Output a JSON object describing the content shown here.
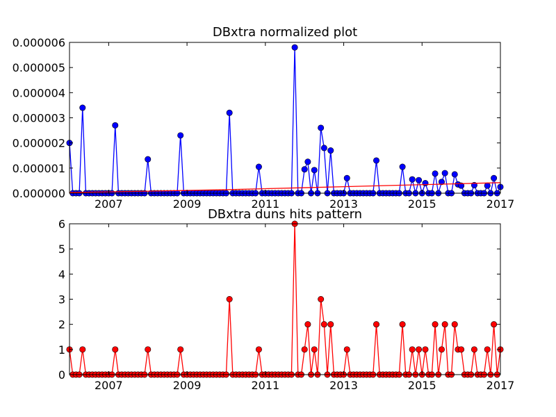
{
  "chart_data": [
    {
      "type": "line",
      "title": "DBxtra normalized plot",
      "xlabel": "",
      "ylabel": "",
      "xlim": [
        2006.0,
        2017.0
      ],
      "ylim": [
        0,
        6e-06
      ],
      "x_ticks": [
        "2007",
        "2009",
        "2011",
        "2013",
        "2015",
        "2017"
      ],
      "y_ticks": [
        "0.000000",
        "0.000001",
        "0.000002",
        "0.000003",
        "0.000004",
        "0.000005",
        "0.000006"
      ],
      "grid": false,
      "legend": "none",
      "series": [
        {
          "color": "#0000ff",
          "marker": "circle",
          "points": [
            [
              2006.0,
              2e-06
            ],
            [
              2006.33,
              3.4e-06
            ],
            [
              2007.17,
              2.7e-06
            ],
            [
              2008.0,
              1.35e-06
            ],
            [
              2008.83,
              2.3e-06
            ],
            [
              2010.08,
              3.2e-06
            ],
            [
              2010.83,
              1.05e-06
            ],
            [
              2011.75,
              5.8e-06
            ],
            [
              2012.0,
              9.5e-07
            ],
            [
              2012.08,
              1.25e-06
            ],
            [
              2012.25,
              9.2e-07
            ],
            [
              2012.42,
              2.6e-06
            ],
            [
              2012.5,
              1.8e-06
            ],
            [
              2012.67,
              1.7e-06
            ],
            [
              2013.08,
              6e-07
            ],
            [
              2013.83,
              1.3e-06
            ],
            [
              2014.5,
              1.05e-06
            ],
            [
              2014.75,
              5.5e-07
            ],
            [
              2014.92,
              5.2e-07
            ],
            [
              2015.08,
              4e-07
            ],
            [
              2015.33,
              7.8e-07
            ],
            [
              2015.5,
              4.5e-07
            ],
            [
              2015.58,
              8e-07
            ],
            [
              2015.83,
              7.5e-07
            ],
            [
              2015.92,
              3.5e-07
            ],
            [
              2016.0,
              3e-07
            ],
            [
              2016.33,
              3.2e-07
            ],
            [
              2016.67,
              3e-07
            ],
            [
              2016.83,
              6e-07
            ],
            [
              2017.0,
              2.5e-07
            ]
          ]
        },
        {
          "color": "#ff0000",
          "marker": "none",
          "points": [
            [
              2006.0,
              3e-08
            ],
            [
              2008.0,
              8e-08
            ],
            [
              2010.0,
              1.4e-07
            ],
            [
              2012.0,
              2.2e-07
            ],
            [
              2014.0,
              3e-07
            ],
            [
              2017.0,
              4.2e-07
            ]
          ]
        }
      ]
    },
    {
      "type": "line",
      "title": "DBxtra duns hits pattern",
      "xlabel": "",
      "ylabel": "",
      "xlim": [
        2006.0,
        2017.0
      ],
      "ylim": [
        0,
        6
      ],
      "x_ticks": [
        "2007",
        "2009",
        "2011",
        "2013",
        "2015",
        "2017"
      ],
      "y_ticks": [
        "0",
        "1",
        "2",
        "3",
        "4",
        "5",
        "6"
      ],
      "grid": false,
      "legend": "none",
      "series": [
        {
          "color": "#ff0000",
          "marker": "circle",
          "points": [
            [
              2006.0,
              1
            ],
            [
              2006.33,
              1
            ],
            [
              2007.17,
              1
            ],
            [
              2008.0,
              1
            ],
            [
              2008.83,
              1
            ],
            [
              2010.08,
              3
            ],
            [
              2010.83,
              1
            ],
            [
              2011.75,
              6
            ],
            [
              2012.0,
              1
            ],
            [
              2012.08,
              2
            ],
            [
              2012.25,
              1
            ],
            [
              2012.42,
              3
            ],
            [
              2012.5,
              2
            ],
            [
              2012.67,
              2
            ],
            [
              2013.08,
              1
            ],
            [
              2013.83,
              2
            ],
            [
              2014.5,
              2
            ],
            [
              2014.75,
              1
            ],
            [
              2014.92,
              1
            ],
            [
              2015.08,
              1
            ],
            [
              2015.33,
              2
            ],
            [
              2015.5,
              1
            ],
            [
              2015.58,
              2
            ],
            [
              2015.83,
              2
            ],
            [
              2015.92,
              1
            ],
            [
              2016.0,
              1
            ],
            [
              2016.33,
              1
            ],
            [
              2016.67,
              1
            ],
            [
              2016.83,
              2
            ],
            [
              2017.0,
              1
            ]
          ]
        }
      ]
    }
  ]
}
